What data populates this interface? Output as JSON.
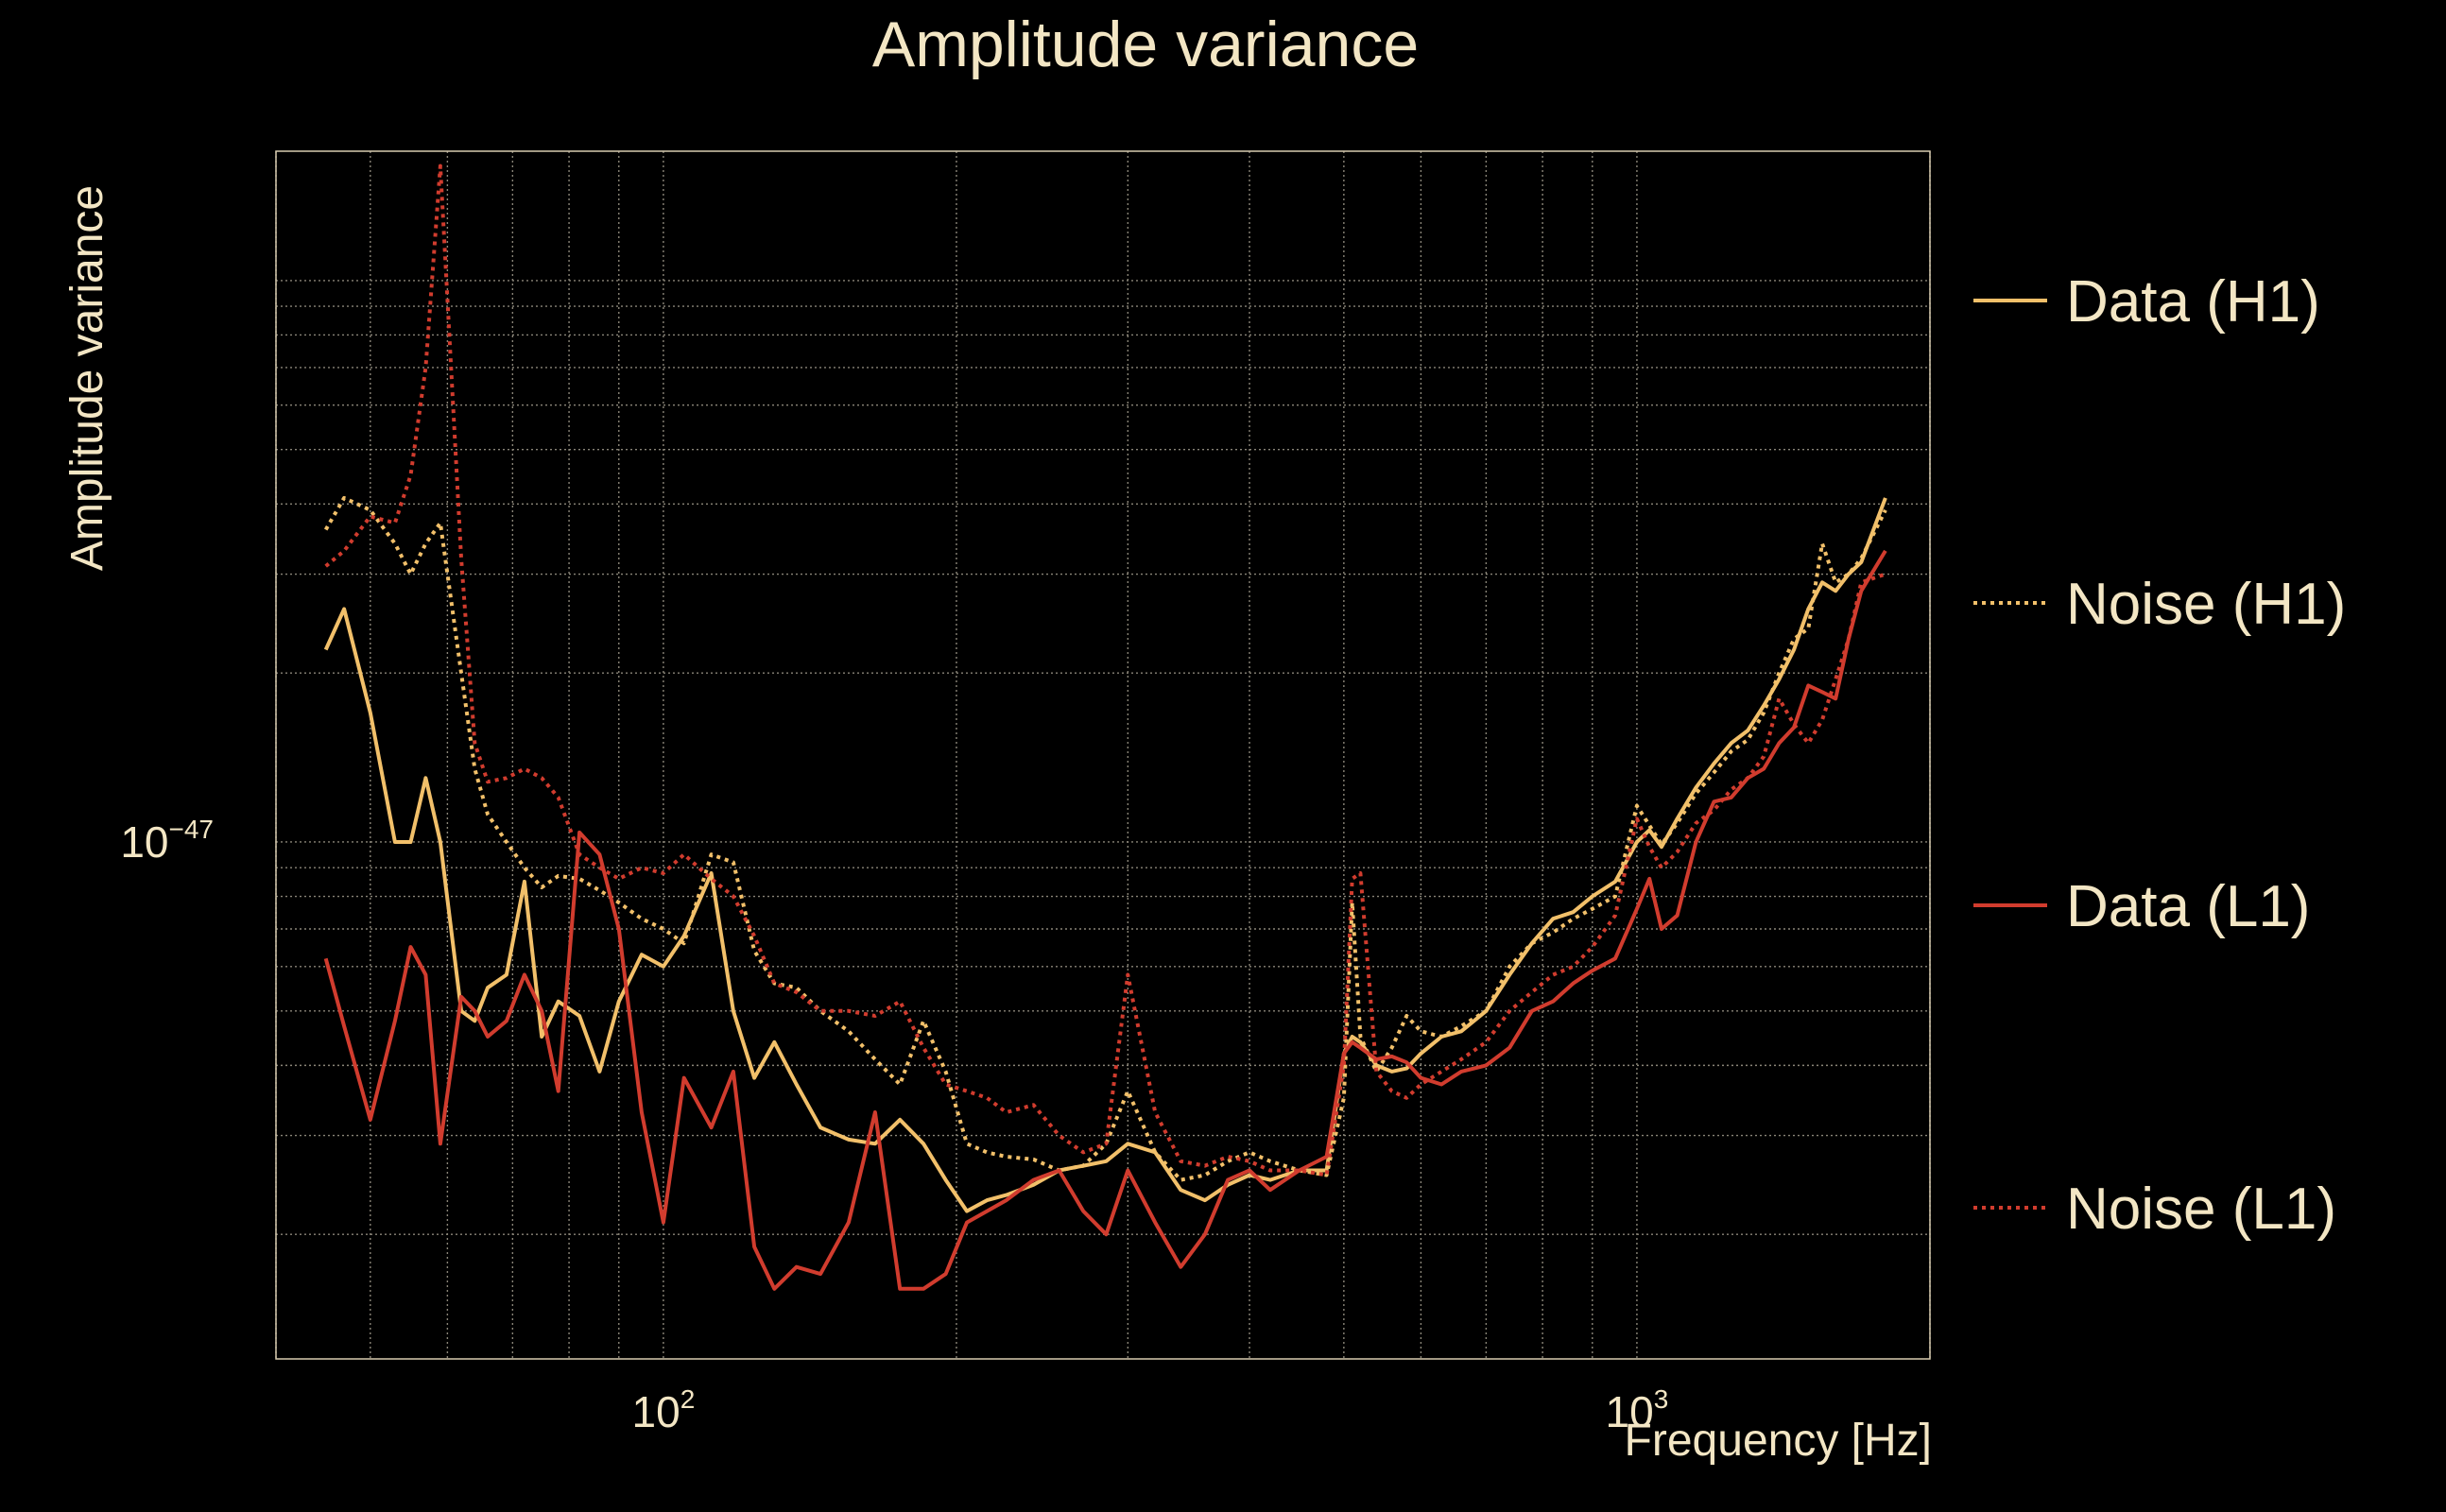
{
  "chart_data": {
    "type": "line",
    "title": "Amplitude variance",
    "xlabel": "Frequency [Hz]",
    "ylabel": "Amplitude variance",
    "xscale": "log",
    "yscale": "log",
    "xlim": [
      40,
      2000
    ],
    "ylim": [
      1.2e-48,
      1.7e-46
    ],
    "xticks": [
      {
        "value": 100,
        "base": "10",
        "exp": "2"
      },
      {
        "value": 1000,
        "base": "10",
        "exp": "3"
      }
    ],
    "yticks": [
      {
        "value": 1e-47,
        "base": "10",
        "exp": "−47"
      }
    ],
    "grid": true,
    "legend_position": "right",
    "series": [
      {
        "name": "Data (H1)",
        "color": "#f2c06a",
        "style": "solid",
        "x": [
          45,
          47,
          50,
          53,
          55,
          57,
          59,
          62,
          64,
          66,
          69,
          72,
          75,
          78,
          82,
          86,
          90,
          95,
          100,
          105,
          112,
          118,
          124,
          130,
          137,
          145,
          155,
          165,
          175,
          185,
          195,
          205,
          215,
          225,
          240,
          255,
          270,
          285,
          300,
          320,
          340,
          360,
          380,
          400,
          420,
          450,
          480,
          500,
          510,
          520,
          540,
          560,
          580,
          600,
          630,
          660,
          700,
          740,
          780,
          820,
          860,
          900,
          950,
          1000,
          1030,
          1060,
          1100,
          1150,
          1200,
          1250,
          1300,
          1350,
          1400,
          1450,
          1500,
          1550,
          1600,
          1650,
          1700,
          1800
        ],
        "y": [
          2.2e-47,
          2.6e-47,
          1.7e-47,
          1e-47,
          1e-47,
          1.3e-47,
          1e-47,
          5e-48,
          4.8e-48,
          5.5e-48,
          5.8e-48,
          8.5e-48,
          4.5e-48,
          5.2e-48,
          4.9e-48,
          3.9e-48,
          5.2e-48,
          6.3e-48,
          6e-48,
          6.8e-48,
          8.8e-48,
          5e-48,
          3.8e-48,
          4.4e-48,
          3.7e-48,
          3.1e-48,
          2.95e-48,
          2.9e-48,
          3.2e-48,
          2.9e-48,
          2.5e-48,
          2.2e-48,
          2.3e-48,
          2.35e-48,
          2.45e-48,
          2.6e-48,
          2.65e-48,
          2.7e-48,
          2.9e-48,
          2.8e-48,
          2.4e-48,
          2.3e-48,
          2.45e-48,
          2.55e-48,
          2.5e-48,
          2.6e-48,
          2.6e-48,
          4.2e-48,
          4.5e-48,
          4.4e-48,
          4e-48,
          3.9e-48,
          3.95e-48,
          4.2e-48,
          4.5e-48,
          4.6e-48,
          5e-48,
          5.8e-48,
          6.6e-48,
          7.3e-48,
          7.5e-48,
          8e-48,
          8.5e-48,
          1e-47,
          1.05e-47,
          9.8e-48,
          1.1e-47,
          1.25e-47,
          1.38e-47,
          1.5e-47,
          1.58e-47,
          1.75e-47,
          1.95e-47,
          2.2e-47,
          2.6e-47,
          2.9e-47,
          2.8e-47,
          3e-47,
          3.15e-47,
          4.1e-47
        ]
      },
      {
        "name": "Noise (H1)",
        "color": "#f2c06a",
        "style": "dotted",
        "x": [
          45,
          47,
          50,
          53,
          55,
          57,
          59,
          62,
          64,
          66,
          69,
          72,
          75,
          78,
          82,
          86,
          90,
          95,
          100,
          105,
          112,
          118,
          124,
          130,
          137,
          145,
          155,
          165,
          175,
          185,
          195,
          205,
          215,
          225,
          240,
          255,
          270,
          285,
          300,
          320,
          340,
          360,
          380,
          400,
          420,
          450,
          480,
          500,
          510,
          520,
          540,
          560,
          580,
          600,
          630,
          660,
          700,
          740,
          780,
          820,
          860,
          900,
          950,
          1000,
          1030,
          1060,
          1100,
          1150,
          1200,
          1250,
          1300,
          1350,
          1400,
          1450,
          1500,
          1550,
          1600,
          1650,
          1700,
          1800
        ],
        "y": [
          3.6e-47,
          4.1e-47,
          3.9e-47,
          3.4e-47,
          3e-47,
          3.4e-47,
          3.7e-47,
          2e-47,
          1.35e-47,
          1.12e-47,
          1e-47,
          9e-48,
          8.3e-48,
          8.7e-48,
          8.6e-48,
          8.2e-48,
          7.8e-48,
          7.3e-48,
          7e-48,
          6.6e-48,
          9.5e-48,
          9.2e-48,
          6.4e-48,
          5.6e-48,
          5.5e-48,
          5e-48,
          4.6e-48,
          4.1e-48,
          3.7e-48,
          4.8e-48,
          3.9e-48,
          2.9e-48,
          2.8e-48,
          2.75e-48,
          2.72e-48,
          2.6e-48,
          2.65e-48,
          2.9e-48,
          3.6e-48,
          2.8e-48,
          2.5e-48,
          2.55e-48,
          2.7e-48,
          2.8e-48,
          2.7e-48,
          2.6e-48,
          2.55e-48,
          3.5e-48,
          7.8e-48,
          4.5e-48,
          3.9e-48,
          4.3e-48,
          4.9e-48,
          4.6e-48,
          4.5e-48,
          4.7e-48,
          5e-48,
          6e-48,
          6.6e-48,
          6.9e-48,
          7.3e-48,
          7.6e-48,
          8e-48,
          1.16e-47,
          1.07e-47,
          9.9e-48,
          1.08e-47,
          1.22e-47,
          1.33e-47,
          1.45e-47,
          1.52e-47,
          1.7e-47,
          2e-47,
          2.3e-47,
          2.4e-47,
          3.4e-47,
          2.9e-47,
          3e-47,
          3.2e-47,
          3.9e-47
        ]
      },
      {
        "name": "Data (L1)",
        "color": "#d13c2e",
        "style": "solid",
        "x": [
          45,
          47,
          50,
          53,
          55,
          57,
          59,
          62,
          64,
          66,
          69,
          72,
          75,
          78,
          82,
          86,
          90,
          95,
          100,
          105,
          112,
          118,
          124,
          130,
          137,
          145,
          155,
          165,
          175,
          185,
          195,
          205,
          215,
          225,
          240,
          255,
          270,
          285,
          300,
          320,
          340,
          360,
          380,
          400,
          420,
          450,
          480,
          500,
          510,
          520,
          540,
          560,
          580,
          600,
          630,
          660,
          700,
          740,
          780,
          820,
          860,
          900,
          950,
          1000,
          1030,
          1060,
          1100,
          1150,
          1200,
          1250,
          1300,
          1350,
          1400,
          1450,
          1500,
          1550,
          1600,
          1650,
          1700,
          1800
        ],
        "y": [
          6.2e-48,
          4.7e-48,
          3.2e-48,
          4.8e-48,
          6.5e-48,
          5.8e-48,
          2.9e-48,
          5.3e-48,
          5e-48,
          4.5e-48,
          4.8e-48,
          5.8e-48,
          5e-48,
          3.6e-48,
          1.04e-47,
          9.5e-48,
          7e-48,
          3.3e-48,
          2.1e-48,
          3.8e-48,
          3.1e-48,
          3.9e-48,
          1.9e-48,
          1.6e-48,
          1.75e-48,
          1.7e-48,
          2.1e-48,
          3.3e-48,
          1.6e-48,
          1.6e-48,
          1.7e-48,
          2.1e-48,
          2.2e-48,
          2.3e-48,
          2.5e-48,
          2.6e-48,
          2.2e-48,
          2e-48,
          2.6e-48,
          2.1e-48,
          1.75e-48,
          2e-48,
          2.5e-48,
          2.6e-48,
          2.4e-48,
          2.6e-48,
          2.75e-48,
          4.2e-48,
          4.4e-48,
          4.3e-48,
          4.1e-48,
          4.15e-48,
          4.05e-48,
          3.8e-48,
          3.7e-48,
          3.9e-48,
          4e-48,
          4.3e-48,
          5e-48,
          5.2e-48,
          5.6e-48,
          5.9e-48,
          6.2e-48,
          7.6e-48,
          8.6e-48,
          7e-48,
          7.4e-48,
          1e-47,
          1.18e-47,
          1.2e-47,
          1.3e-47,
          1.35e-47,
          1.5e-47,
          1.6e-47,
          1.9e-47,
          1.85e-47,
          1.8e-47,
          2.3e-47,
          2.8e-47,
          3.3e-47
        ]
      },
      {
        "name": "Noise (L1)",
        "color": "#d13c2e",
        "style": "dotted",
        "x": [
          45,
          47,
          50,
          53,
          55,
          57,
          59,
          62,
          64,
          66,
          69,
          72,
          75,
          78,
          82,
          86,
          90,
          95,
          100,
          105,
          112,
          118,
          124,
          130,
          137,
          145,
          155,
          165,
          175,
          185,
          195,
          205,
          215,
          225,
          240,
          255,
          270,
          285,
          300,
          320,
          340,
          360,
          380,
          400,
          420,
          450,
          480,
          500,
          510,
          520,
          540,
          560,
          580,
          600,
          630,
          660,
          700,
          740,
          780,
          820,
          860,
          900,
          950,
          1000,
          1030,
          1060,
          1100,
          1150,
          1200,
          1250,
          1300,
          1350,
          1400,
          1450,
          1500,
          1550,
          1600,
          1650,
          1700,
          1800
        ],
        "y": [
          3.1e-47,
          3.3e-47,
          3.8e-47,
          3.7e-47,
          4.5e-47,
          7e-47,
          1.6e-46,
          3.2e-47,
          1.5e-47,
          1.28e-47,
          1.3e-47,
          1.35e-47,
          1.3e-47,
          1.2e-47,
          9.5e-48,
          9e-48,
          8.6e-48,
          9e-48,
          8.8e-48,
          9.5e-48,
          8.6e-48,
          8e-48,
          6.8e-48,
          5.6e-48,
          5.4e-48,
          5e-48,
          5e-48,
          4.9e-48,
          5.2e-48,
          4.3e-48,
          3.7e-48,
          3.6e-48,
          3.5e-48,
          3.3e-48,
          3.4e-48,
          3e-48,
          2.8e-48,
          2.9e-48,
          5.8e-48,
          3.3e-48,
          2.7e-48,
          2.65e-48,
          2.75e-48,
          2.7e-48,
          2.6e-48,
          2.6e-48,
          2.55e-48,
          4e-48,
          8.6e-48,
          8.8e-48,
          3.9e-48,
          3.6e-48,
          3.5e-48,
          3.7e-48,
          3.9e-48,
          4.1e-48,
          4.4e-48,
          5e-48,
          5.4e-48,
          5.8e-48,
          6e-48,
          6.5e-48,
          7.4e-48,
          1.1e-47,
          9.8e-48,
          9e-48,
          9.6e-48,
          1.08e-47,
          1.14e-47,
          1.24e-47,
          1.3e-47,
          1.42e-47,
          1.8e-47,
          1.62e-47,
          1.5e-47,
          1.65e-47,
          1.95e-47,
          2.3e-47,
          2.9e-47,
          3e-47
        ]
      }
    ]
  }
}
